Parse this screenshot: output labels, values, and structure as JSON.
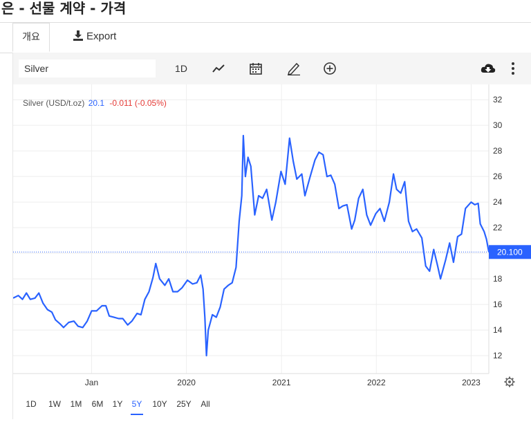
{
  "page": {
    "title": "은 - 선물 계약 - 가격"
  },
  "tabs": [
    {
      "label": "개요"
    },
    {
      "label": "Export"
    }
  ],
  "toolbar": {
    "symbol": "Silver",
    "interval": "1D",
    "icons": [
      "line-chart-icon",
      "calendar-icon",
      "pencil-icon",
      "add-circle-icon",
      "cloud-download-icon",
      "more-vertical-icon"
    ]
  },
  "legend": {
    "label": "Silver (USD/t.oz)",
    "value": "20.1",
    "change": "-0.011 (-0.05%)"
  },
  "ranges": [
    "1D",
    "1W",
    "1M",
    "6M",
    "1Y",
    "5Y",
    "10Y",
    "25Y",
    "All"
  ],
  "active_range": "5Y",
  "colors": {
    "line": "#2962ff",
    "price_tag": "#2962ff",
    "negative": "#e53935",
    "grid": "#eeeeee"
  },
  "chart_data": {
    "type": "line",
    "title": "Silver (USD/t.oz)",
    "xlabel": "",
    "ylabel": "",
    "ylim": [
      10.6,
      33.2
    ],
    "yticks": [
      12,
      14,
      16,
      18,
      20,
      22,
      24,
      26,
      28,
      30,
      32
    ],
    "xticks": [
      {
        "label": "Jan",
        "x": "2019-01-01"
      },
      {
        "label": "2020",
        "x": "2020-01-01"
      },
      {
        "label": "2021",
        "x": "2021-01-01"
      },
      {
        "label": "2022",
        "x": "2022-01-01"
      },
      {
        "label": "2023",
        "x": "2023-01-01"
      }
    ],
    "xlim": [
      "2018-03-05",
      "2023-03-10"
    ],
    "last_price": {
      "value": 20.1,
      "label": "20.100"
    },
    "series": [
      {
        "name": "Silver",
        "points": [
          [
            "2018-03-05",
            16.5
          ],
          [
            "2018-03-25",
            16.7
          ],
          [
            "2018-04-10",
            16.4
          ],
          [
            "2018-04-25",
            16.9
          ],
          [
            "2018-05-10",
            16.4
          ],
          [
            "2018-05-28",
            16.5
          ],
          [
            "2018-06-12",
            16.9
          ],
          [
            "2018-06-28",
            16.1
          ],
          [
            "2018-07-15",
            15.6
          ],
          [
            "2018-08-01",
            15.4
          ],
          [
            "2018-08-15",
            14.8
          ],
          [
            "2018-09-01",
            14.5
          ],
          [
            "2018-09-15",
            14.2
          ],
          [
            "2018-10-05",
            14.6
          ],
          [
            "2018-10-25",
            14.7
          ],
          [
            "2018-11-10",
            14.3
          ],
          [
            "2018-11-28",
            14.2
          ],
          [
            "2018-12-15",
            14.7
          ],
          [
            "2019-01-01",
            15.5
          ],
          [
            "2019-01-20",
            15.5
          ],
          [
            "2019-02-10",
            15.9
          ],
          [
            "2019-02-25",
            15.9
          ],
          [
            "2019-03-10",
            15.1
          ],
          [
            "2019-03-28",
            15.0
          ],
          [
            "2019-04-15",
            14.9
          ],
          [
            "2019-05-01",
            14.9
          ],
          [
            "2019-05-20",
            14.4
          ],
          [
            "2019-06-05",
            14.7
          ],
          [
            "2019-06-25",
            15.3
          ],
          [
            "2019-07-10",
            15.2
          ],
          [
            "2019-07-25",
            16.4
          ],
          [
            "2019-08-10",
            17.0
          ],
          [
            "2019-08-25",
            18.1
          ],
          [
            "2019-09-05",
            19.2
          ],
          [
            "2019-09-20",
            18.0
          ],
          [
            "2019-10-10",
            17.5
          ],
          [
            "2019-10-25",
            18.0
          ],
          [
            "2019-11-10",
            17.0
          ],
          [
            "2019-11-28",
            17.0
          ],
          [
            "2019-12-15",
            17.3
          ],
          [
            "2020-01-05",
            17.9
          ],
          [
            "2020-01-25",
            17.6
          ],
          [
            "2020-02-10",
            17.7
          ],
          [
            "2020-02-25",
            18.3
          ],
          [
            "2020-03-05",
            17.2
          ],
          [
            "2020-03-12",
            15.0
          ],
          [
            "2020-03-18",
            12.0
          ],
          [
            "2020-03-25",
            14.0
          ],
          [
            "2020-04-10",
            15.2
          ],
          [
            "2020-04-25",
            15.0
          ],
          [
            "2020-05-10",
            15.8
          ],
          [
            "2020-05-25",
            17.2
          ],
          [
            "2020-06-10",
            17.5
          ],
          [
            "2020-06-25",
            17.7
          ],
          [
            "2020-07-10",
            18.9
          ],
          [
            "2020-07-22",
            22.5
          ],
          [
            "2020-08-01",
            24.5
          ],
          [
            "2020-08-07",
            29.2
          ],
          [
            "2020-08-15",
            26.0
          ],
          [
            "2020-08-25",
            27.5
          ],
          [
            "2020-09-05",
            26.8
          ],
          [
            "2020-09-20",
            23.0
          ],
          [
            "2020-10-05",
            24.5
          ],
          [
            "2020-10-20",
            24.3
          ],
          [
            "2020-11-05",
            25.0
          ],
          [
            "2020-11-25",
            22.6
          ],
          [
            "2020-12-10",
            24.0
          ],
          [
            "2020-12-30",
            26.4
          ],
          [
            "2021-01-15",
            25.4
          ],
          [
            "2021-02-01",
            29.0
          ],
          [
            "2021-02-15",
            27.2
          ],
          [
            "2021-03-01",
            25.8
          ],
          [
            "2021-03-20",
            26.2
          ],
          [
            "2021-04-01",
            24.5
          ],
          [
            "2021-04-20",
            25.9
          ],
          [
            "2021-05-10",
            27.3
          ],
          [
            "2021-05-25",
            27.9
          ],
          [
            "2021-06-10",
            27.7
          ],
          [
            "2021-06-25",
            26.0
          ],
          [
            "2021-07-10",
            26.1
          ],
          [
            "2021-07-25",
            25.4
          ],
          [
            "2021-08-10",
            23.5
          ],
          [
            "2021-08-25",
            23.7
          ],
          [
            "2021-09-10",
            23.8
          ],
          [
            "2021-09-28",
            21.9
          ],
          [
            "2021-10-10",
            22.6
          ],
          [
            "2021-10-25",
            24.3
          ],
          [
            "2021-11-10",
            25.0
          ],
          [
            "2021-11-25",
            23.0
          ],
          [
            "2021-12-10",
            22.2
          ],
          [
            "2021-12-30",
            23.1
          ],
          [
            "2022-01-15",
            23.5
          ],
          [
            "2022-02-01",
            22.5
          ],
          [
            "2022-02-20",
            24.0
          ],
          [
            "2022-03-08",
            26.2
          ],
          [
            "2022-03-20",
            25.0
          ],
          [
            "2022-04-05",
            24.7
          ],
          [
            "2022-04-20",
            25.6
          ],
          [
            "2022-05-05",
            22.5
          ],
          [
            "2022-05-20",
            21.7
          ],
          [
            "2022-06-05",
            21.9
          ],
          [
            "2022-06-25",
            21.2
          ],
          [
            "2022-07-10",
            19.0
          ],
          [
            "2022-07-25",
            18.6
          ],
          [
            "2022-08-10",
            20.3
          ],
          [
            "2022-08-25",
            19.0
          ],
          [
            "2022-09-05",
            18.0
          ],
          [
            "2022-09-25",
            19.5
          ],
          [
            "2022-10-10",
            20.8
          ],
          [
            "2022-10-25",
            19.3
          ],
          [
            "2022-11-10",
            21.3
          ],
          [
            "2022-11-25",
            21.5
          ],
          [
            "2022-12-10",
            23.5
          ],
          [
            "2023-01-01",
            24.0
          ],
          [
            "2023-01-15",
            23.8
          ],
          [
            "2023-01-28",
            23.9
          ],
          [
            "2023-02-05",
            22.3
          ],
          [
            "2023-02-20",
            21.7
          ],
          [
            "2023-03-01",
            21.1
          ],
          [
            "2023-03-10",
            20.1
          ]
        ]
      }
    ]
  }
}
